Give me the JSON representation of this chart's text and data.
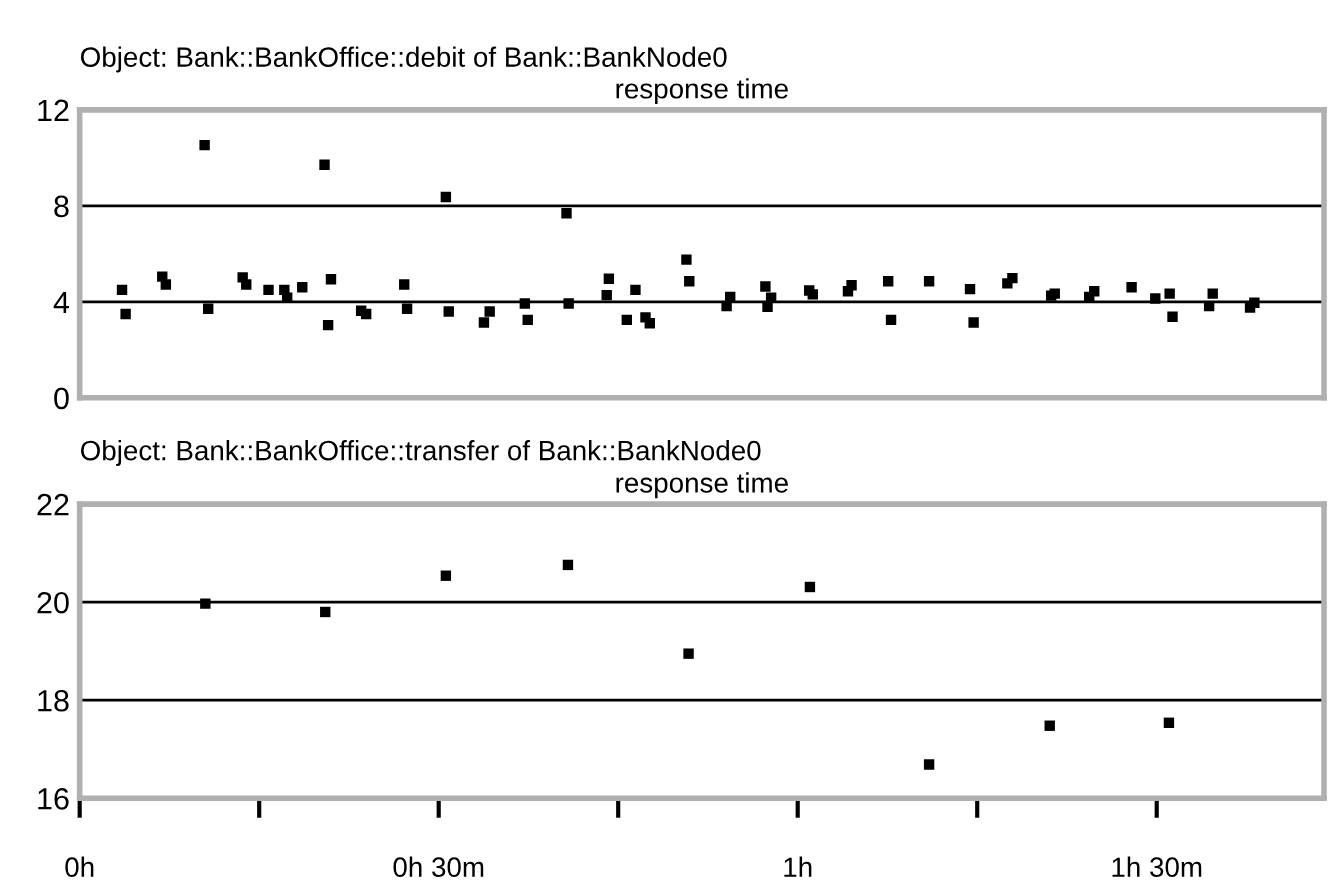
{
  "chart_data": [
    {
      "type": "scatter",
      "title": "Object: Bank::BankOffice::debit of Bank::BankNode0",
      "subtitle": "response time",
      "marker": "square",
      "grid": "y",
      "tick_labels": "y",
      "xlim": [
        0,
        1.733
      ],
      "ylim": [
        0,
        12
      ],
      "yticks": [
        0,
        4,
        8,
        12
      ],
      "series": [
        {
          "color": "#000000",
          "x": [
            0.059,
            0.064,
            0.115,
            0.12,
            0.174,
            0.179,
            0.227,
            0.232,
            0.263,
            0.285,
            0.289,
            0.31,
            0.341,
            0.35,
            0.346,
            0.392,
            0.399,
            0.452,
            0.456,
            0.51,
            0.514,
            0.563,
            0.571,
            0.62,
            0.624,
            0.678,
            0.681,
            0.734,
            0.737,
            0.762,
            0.774,
            0.788,
            0.794,
            0.845,
            0.849,
            0.901,
            0.906,
            0.955,
            0.958,
            0.963,
            1.016,
            1.021,
            1.07,
            1.075,
            1.126,
            1.13,
            1.183,
            1.24,
            1.245,
            1.292,
            1.299,
            1.353,
            1.358,
            1.406,
            1.413,
            1.465,
            1.498,
            1.518,
            1.522,
            1.573,
            1.578,
            1.63,
            1.636
          ],
          "values": [
            4.5,
            3.49,
            5.05,
            4.72,
            10.53,
            3.71,
            5.02,
            4.72,
            4.5,
            4.5,
            4.17,
            4.61,
            9.71,
            4.94,
            3.03,
            3.63,
            3.49,
            4.72,
            3.71,
            8.37,
            3.6,
            3.14,
            3.6,
            3.93,
            3.25,
            7.69,
            3.93,
            4.28,
            4.96,
            3.25,
            4.5,
            3.35,
            3.11,
            5.76,
            4.86,
            3.82,
            4.2,
            4.64,
            3.79,
            4.17,
            4.47,
            4.31,
            4.44,
            4.69,
            4.86,
            3.25,
            4.86,
            4.53,
            3.14,
            4.77,
            4.99,
            4.26,
            4.34,
            4.2,
            4.44,
            4.61,
            4.14,
            4.34,
            3.38,
            3.82,
            4.34,
            3.76,
            3.96
          ]
        }
      ]
    },
    {
      "type": "scatter",
      "title": "Object: Bank::BankOffice::transfer of Bank::BankNode0",
      "subtitle": "response time",
      "marker": "square",
      "grid": "y",
      "xlim": [
        0,
        1.733
      ],
      "ylim": [
        16,
        22
      ],
      "yticks": [
        16,
        18,
        20,
        22
      ],
      "xticks": [
        {
          "value": 0,
          "label": "0h"
        },
        {
          "value": 0.25,
          "label": null
        },
        {
          "value": 0.5,
          "label": "0h 30m"
        },
        {
          "value": 0.75,
          "label": null
        },
        {
          "value": 1,
          "label": "1h"
        },
        {
          "value": 1.25,
          "label": null
        },
        {
          "value": 1.5,
          "label": "1h 30m"
        }
      ],
      "series": [
        {
          "color": "#000000",
          "x": [
            0.175,
            0.342,
            0.51,
            0.68,
            0.848,
            1.017,
            1.183,
            1.351,
            1.517
          ],
          "values": [
            19.97,
            19.8,
            20.54,
            20.76,
            18.95,
            20.31,
            16.69,
            17.48,
            17.54
          ]
        }
      ]
    }
  ]
}
